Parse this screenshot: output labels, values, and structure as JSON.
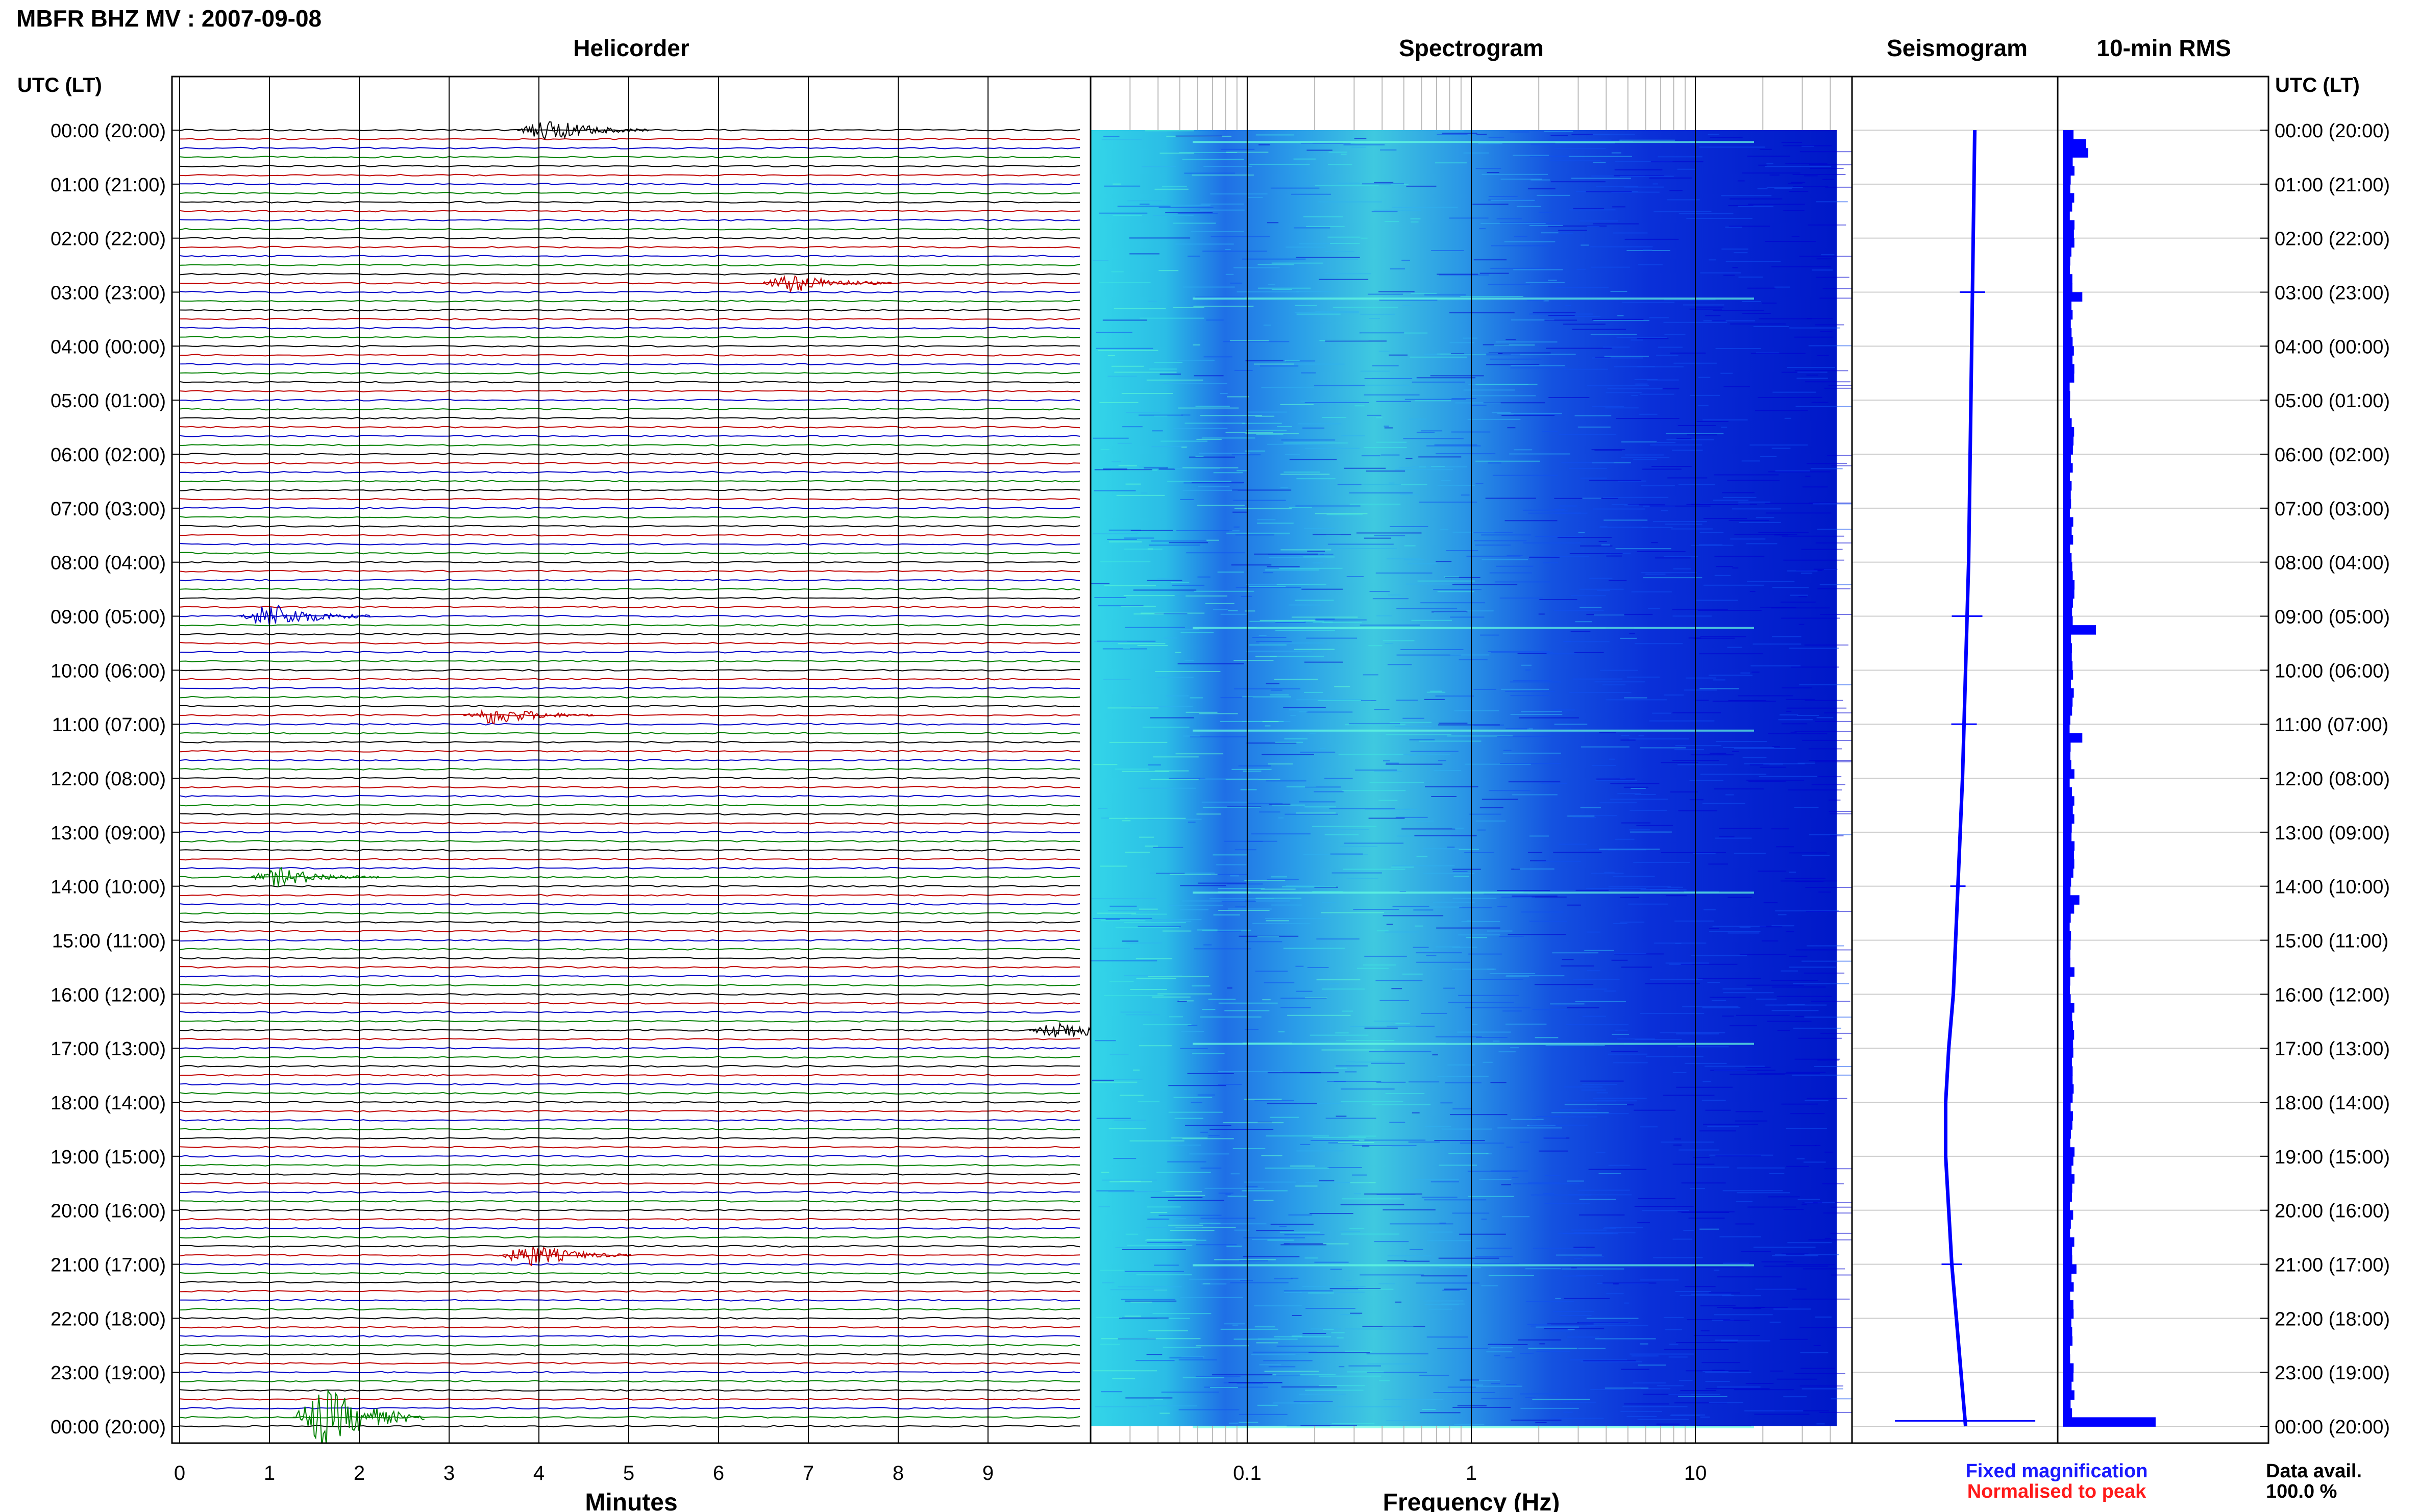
{
  "figure": {
    "title": "MBFR BHZ MV : 2007-09-08",
    "utc_header_left": "UTC (LT)",
    "utc_header_right": "UTC (LT)",
    "panel_titles": {
      "helicorder": "Helicorder",
      "spectrogram": "Spectrogram",
      "seismogram": "Seismogram",
      "rms": "10-min RMS"
    },
    "legend": {
      "fixed": "Fixed magnification",
      "normalised": "Normalised to peak",
      "fixed_color": "#1a1aff",
      "normalised_color": "#ff1a1a"
    },
    "data_avail_label": "Data avail.",
    "data_avail_value": "100.0 %"
  },
  "chart_data": [
    {
      "type": "line",
      "panel": "Helicorder",
      "xlabel": "Minutes",
      "x_ticks": [
        "0",
        "1",
        "2",
        "3",
        "4",
        "5",
        "6",
        "7",
        "8",
        "9"
      ],
      "xlim": [
        0,
        10
      ],
      "row_minutes": 10,
      "row_count": 145,
      "trace_colors": [
        "#000000",
        "#c00000",
        "#0000c8",
        "#008000"
      ],
      "y_tick_labels": [
        "00:00 (20:00)",
        "01:00 (21:00)",
        "02:00 (22:00)",
        "03:00 (23:00)",
        "04:00 (00:00)",
        "05:00 (01:00)",
        "06:00 (02:00)",
        "07:00 (03:00)",
        "08:00 (04:00)",
        "09:00 (05:00)",
        "10:00 (06:00)",
        "11:00 (07:00)",
        "12:00 (08:00)",
        "13:00 (09:00)",
        "14:00 (10:00)",
        "15:00 (11:00)",
        "16:00 (12:00)",
        "17:00 (13:00)",
        "18:00 (14:00)",
        "19:00 (15:00)",
        "20:00 (16:00)",
        "21:00 (17:00)",
        "22:00 (18:00)",
        "23:00 (19:00)",
        "00:00 (20:00)"
      ],
      "events": [
        {
          "hour": 0.0,
          "minute": 4.1,
          "amplitude": 0.6
        },
        {
          "hour": 2.9,
          "minute": 6.8,
          "amplitude": 0.5
        },
        {
          "hour": 9.0,
          "minute": 1.0,
          "amplitude": 0.7
        },
        {
          "hour": 10.9,
          "minute": 3.5,
          "amplitude": 0.5
        },
        {
          "hour": 13.9,
          "minute": 1.1,
          "amplitude": 0.5
        },
        {
          "hour": 16.7,
          "minute": 9.8,
          "amplitude": 0.5
        },
        {
          "hour": 20.8,
          "minute": 3.9,
          "amplitude": 0.6
        },
        {
          "hour": 23.8,
          "minute": 1.6,
          "amplitude": 1.6
        }
      ]
    },
    {
      "type": "heatmap",
      "panel": "Spectrogram",
      "xlabel": "Frequency (Hz)",
      "x_scale": "log",
      "xlim": [
        0.02,
        50
      ],
      "x_ticks": [
        {
          "value": 0.1,
          "label": "0.1"
        },
        {
          "value": 1,
          "label": "1"
        },
        {
          "value": 10,
          "label": "10"
        }
      ],
      "ylim_hours": [
        0,
        24
      ],
      "colormap": [
        "#0000d0",
        "#1050f0",
        "#30b0f0",
        "#40e8e0",
        "#60ffd0"
      ]
    },
    {
      "type": "line",
      "panel": "Seismogram",
      "ylim_hours": [
        0,
        24
      ],
      "color": "#0000ff",
      "hours": [
        0,
        2,
        4,
        6,
        8,
        10,
        12,
        14,
        16,
        17,
        18,
        19,
        20,
        21,
        22,
        23,
        24
      ],
      "values": [
        0.08,
        0.07,
        0.06,
        0.05,
        0.04,
        0.02,
        0.0,
        -0.03,
        -0.06,
        -0.09,
        -0.11,
        -0.11,
        -0.09,
        -0.07,
        -0.04,
        -0.01,
        0.02
      ],
      "spikes": [
        {
          "hour": 3.0,
          "size": 0.1
        },
        {
          "hour": 9.0,
          "size": 0.12
        },
        {
          "hour": 11.0,
          "size": 0.1
        },
        {
          "hour": 14.0,
          "size": 0.06
        },
        {
          "hour": 21.0,
          "size": 0.08
        },
        {
          "hour": 23.9,
          "size": 0.55
        }
      ]
    },
    {
      "type": "bar",
      "panel": "10-min RMS",
      "color": "#0000ff",
      "ylim_hours": [
        0,
        24
      ],
      "xlim": [
        0,
        1
      ],
      "peaks": [
        {
          "hour": 0.1,
          "value": 0.24
        },
        {
          "hour": 0.35,
          "value": 0.26
        },
        {
          "hour": 3.0,
          "value": 0.2
        },
        {
          "hour": 9.2,
          "value": 0.34
        },
        {
          "hour": 11.2,
          "value": 0.2
        },
        {
          "hour": 14.2,
          "value": 0.17
        },
        {
          "hour": 21.0,
          "value": 0.14
        },
        {
          "hour": 23.8,
          "value": 0.8
        },
        {
          "hour": 23.9,
          "value": 0.95
        }
      ],
      "baseline": 0.1
    }
  ]
}
